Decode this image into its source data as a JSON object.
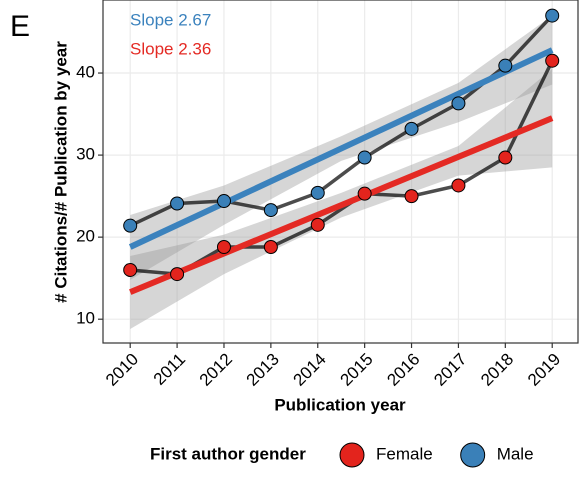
{
  "chart_data": {
    "type": "line",
    "panel_label": "E",
    "x_label": "Publication year",
    "y_label": "# Citations/# Publication by year",
    "x": [
      2010,
      2011,
      2012,
      2013,
      2014,
      2015,
      2016,
      2017,
      2018,
      2019
    ],
    "xlim": [
      2009.42,
      2019.55
    ],
    "xticks": [
      2010,
      2011,
      2012,
      2013,
      2014,
      2015,
      2016,
      2017,
      2018,
      2019
    ],
    "ylim": [
      7.1,
      48.9
    ],
    "yticks": [
      10,
      20,
      30,
      40
    ],
    "grid": true,
    "legend_title": "First author gender",
    "legend_position": "bottom",
    "fit_x": [
      2010,
      2019
    ],
    "ci_x": [
      2010,
      2012,
      2014.5,
      2017,
      2019
    ],
    "series": [
      {
        "name": "Female",
        "color": "#e3241d",
        "line_color": "#e42a24",
        "values": [
          16.0,
          15.5,
          18.8,
          18.8,
          21.5,
          25.3,
          25.0,
          26.3,
          29.7,
          41.5
        ],
        "fit": [
          13.3,
          34.5
        ],
        "ci_lower": [
          8.8,
          15.5,
          22.4,
          27.5,
          28.5
        ],
        "ci_upper": [
          17.7,
          20.3,
          25.4,
          31.1,
          40.5
        ]
      },
      {
        "name": "Male",
        "color": "#3a80b8",
        "line_color": "#3b82bd",
        "values": [
          21.4,
          24.1,
          24.4,
          23.3,
          25.4,
          29.7,
          33.2,
          36.3,
          40.9,
          47.0
        ],
        "fit": [
          18.8,
          42.8
        ],
        "ci_lower": [
          14.8,
          21.5,
          29.3,
          34.0,
          38.6
        ],
        "ci_upper": [
          22.7,
          26.3,
          32.3,
          38.8,
          47.0
        ]
      }
    ],
    "annotations": [
      {
        "text": "Slope 2.67",
        "color": "#3b82bd"
      },
      {
        "text": "Slope 2.36",
        "color": "#e42a24"
      }
    ]
  }
}
